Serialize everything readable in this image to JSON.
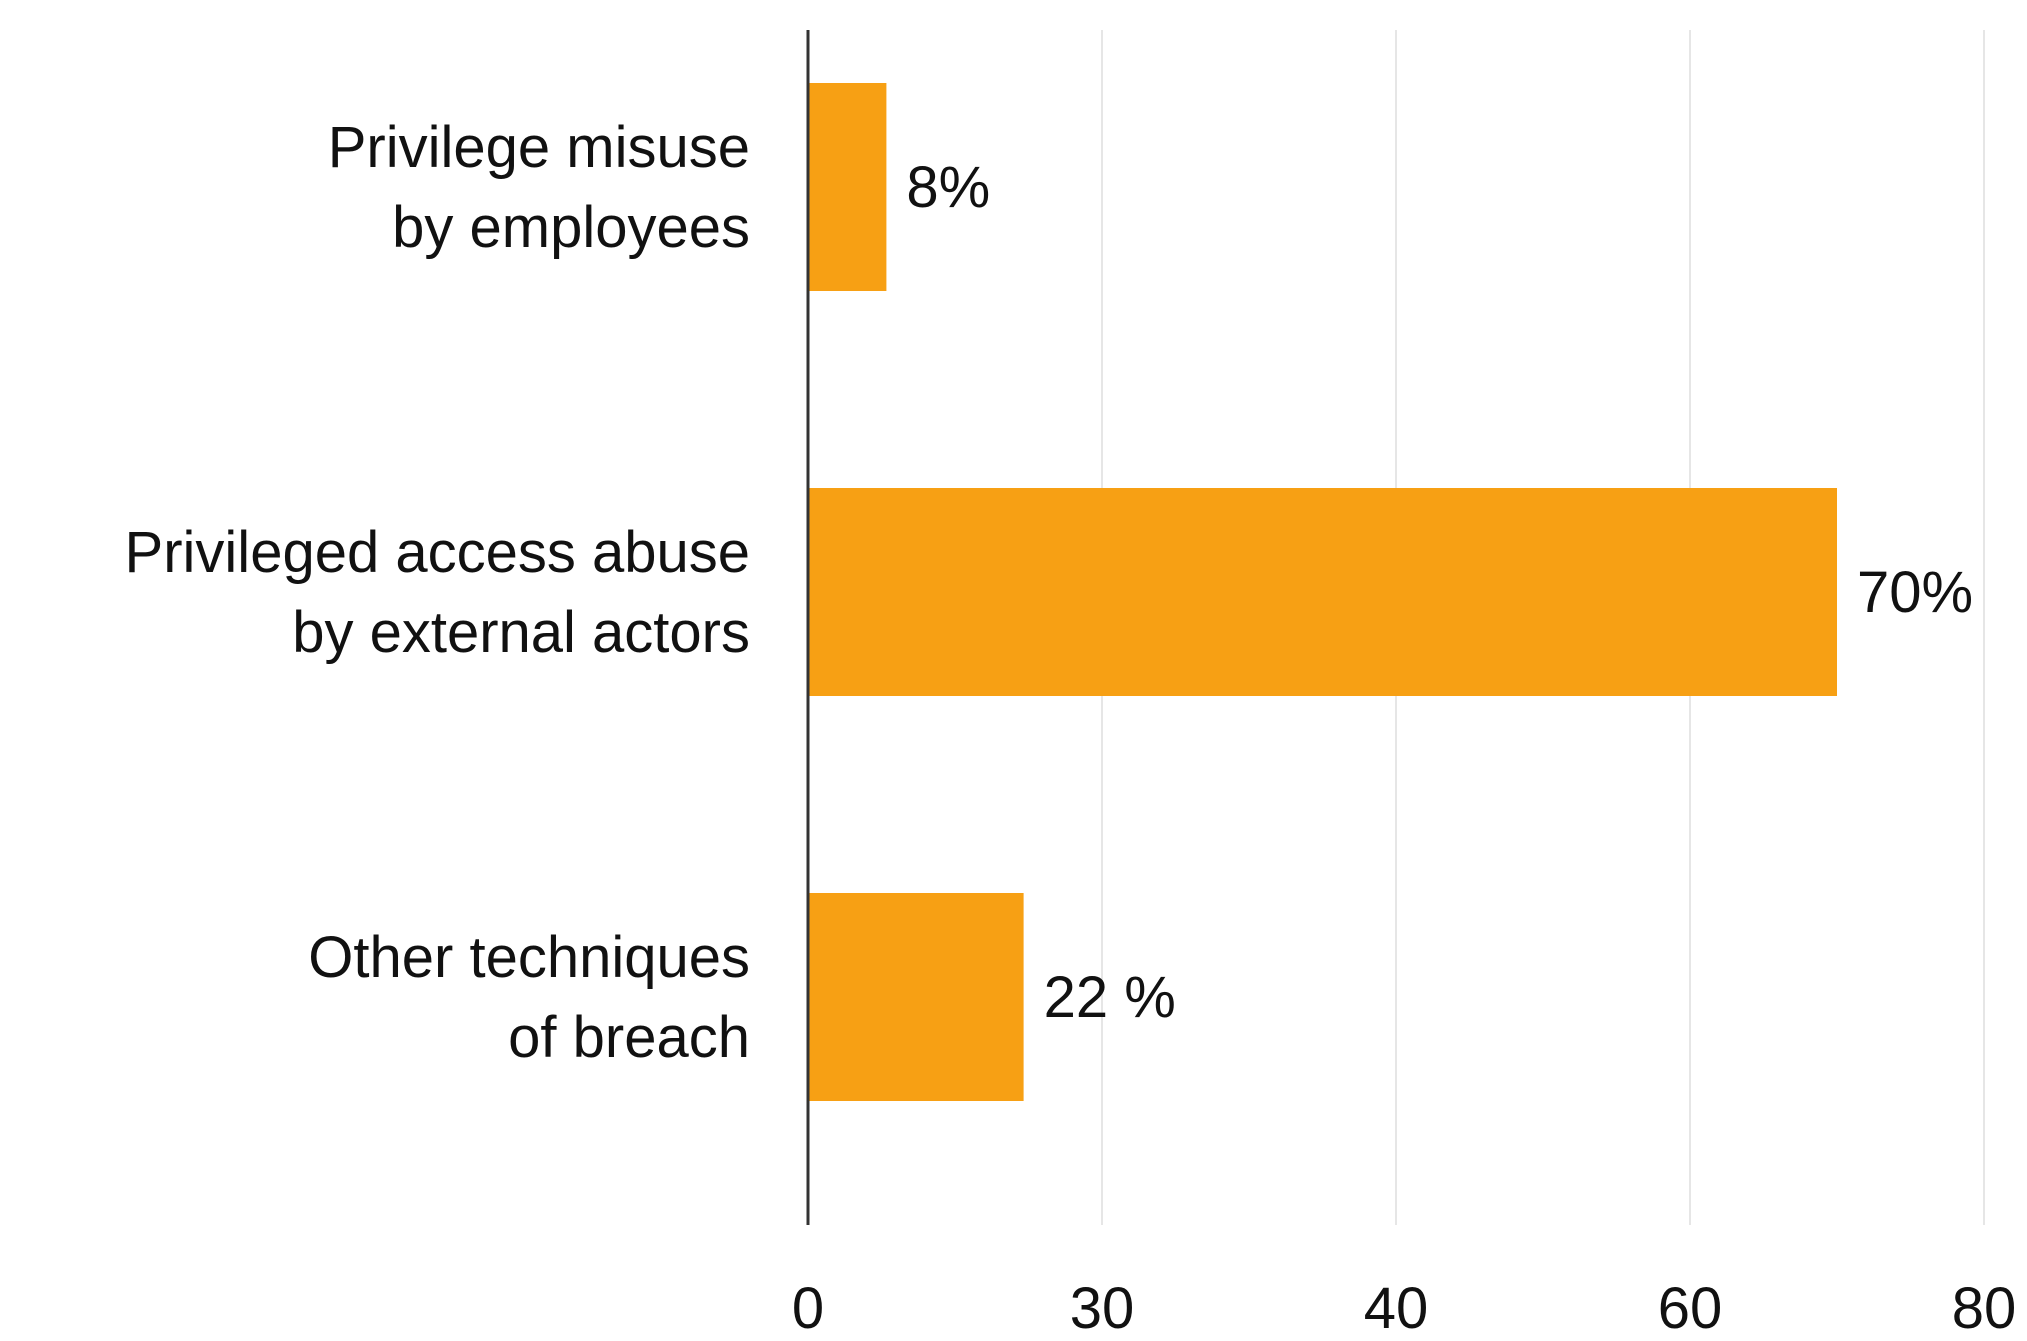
{
  "chart_data": {
    "type": "bar",
    "orientation": "horizontal",
    "categories": [
      [
        "Privilege misuse",
        "by employees"
      ],
      [
        "Privileged access abuse",
        "by external actors"
      ],
      [
        "Other techniques",
        "of breach"
      ]
    ],
    "values": [
      8,
      70,
      22
    ],
    "data_labels": [
      "8%",
      "70%",
      "22 %"
    ],
    "x_ticks": [
      "0",
      "30",
      "40",
      "60",
      "80"
    ],
    "xlim": [
      0,
      80
    ],
    "title": "",
    "xlabel": "",
    "ylabel": "",
    "grid": "vertical",
    "legend": "none",
    "colors": {
      "bar": "#F7A014",
      "axis": "#333333",
      "grid": "#E6E6E6",
      "text": "#111111"
    }
  }
}
